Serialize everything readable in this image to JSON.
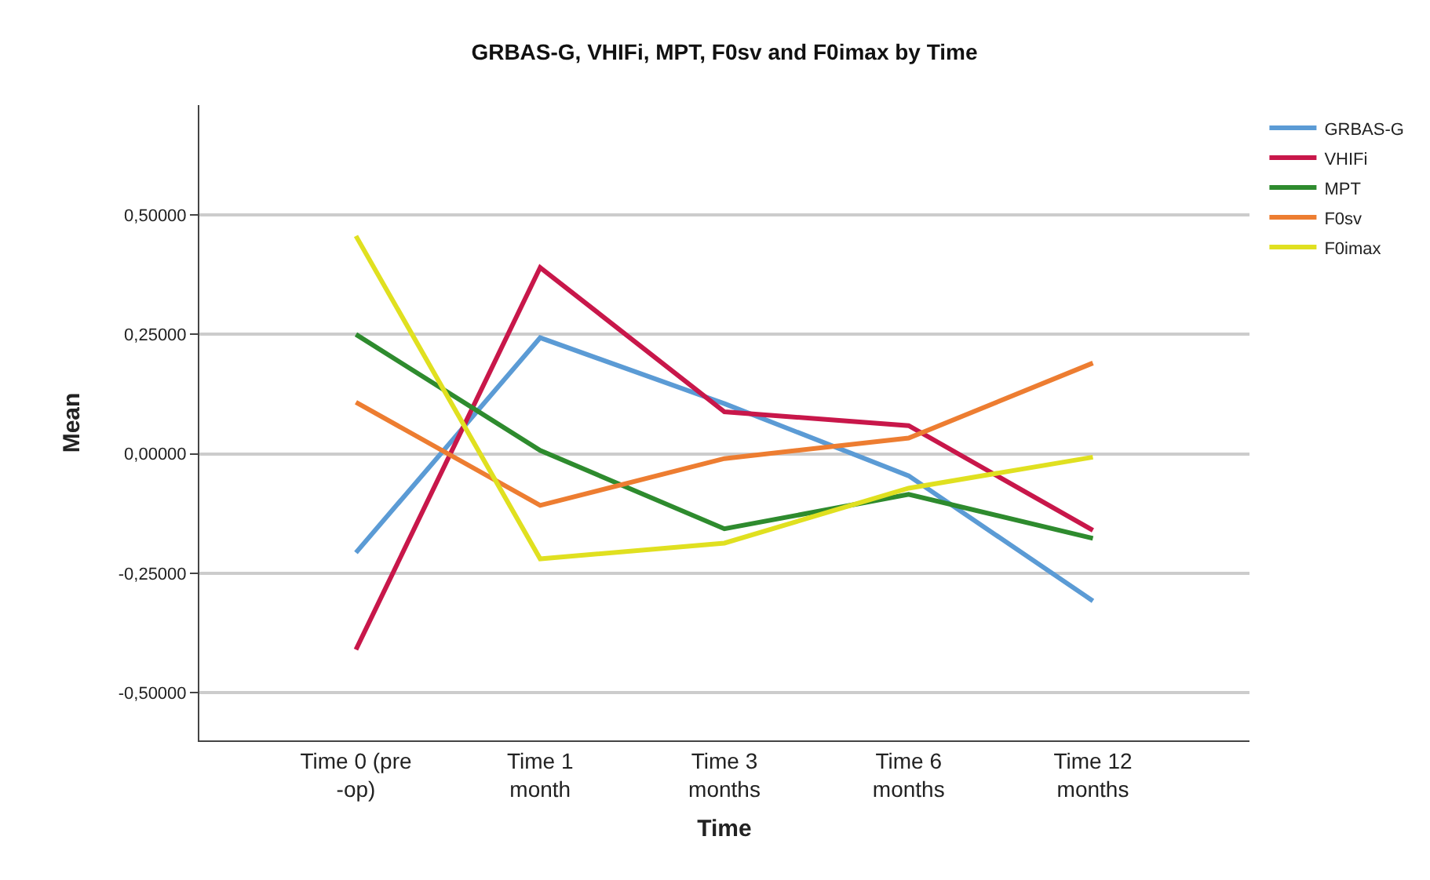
{
  "chart_data": {
    "type": "line",
    "title": "GRBAS-G, VHIFi, MPT, F0sv and F0imax by Time",
    "xlabel": "Time",
    "ylabel": "Mean",
    "categories": [
      "Time 0 (pre -op)",
      "Time 1 month",
      "Time 3 months",
      "Time 6 months",
      "Time 12 months"
    ],
    "series": [
      {
        "name": "GRBAS-G",
        "color": "#5b9bd5",
        "values": [
          -0.207,
          0.243,
          0.105,
          -0.046,
          -0.308
        ]
      },
      {
        "name": "VHIFi",
        "color": "#c8174a",
        "values": [
          -0.41,
          0.39,
          0.088,
          0.059,
          -0.16
        ]
      },
      {
        "name": "MPT",
        "color": "#2e8b2e",
        "values": [
          0.25,
          0.007,
          -0.157,
          -0.085,
          -0.177
        ]
      },
      {
        "name": "F0sv",
        "color": "#ed7d31",
        "values": [
          0.108,
          -0.108,
          -0.01,
          0.033,
          0.19
        ]
      },
      {
        "name": "F0imax",
        "color": "#e0e020",
        "values": [
          0.456,
          -0.22,
          -0.187,
          -0.072,
          -0.007
        ]
      }
    ],
    "ylim": [
      -0.6,
      0.73
    ],
    "yticks": [
      {
        "value": -0.5,
        "label": "-0,50000"
      },
      {
        "value": -0.25,
        "label": "-0,25000"
      },
      {
        "value": 0,
        "label": "0,00000"
      },
      {
        "value": 0.25,
        "label": "0,25000"
      },
      {
        "value": 0.5,
        "label": "0,50000"
      }
    ],
    "grid": "y",
    "legend": "top right",
    "marker": "none",
    "line_style": "solid"
  }
}
